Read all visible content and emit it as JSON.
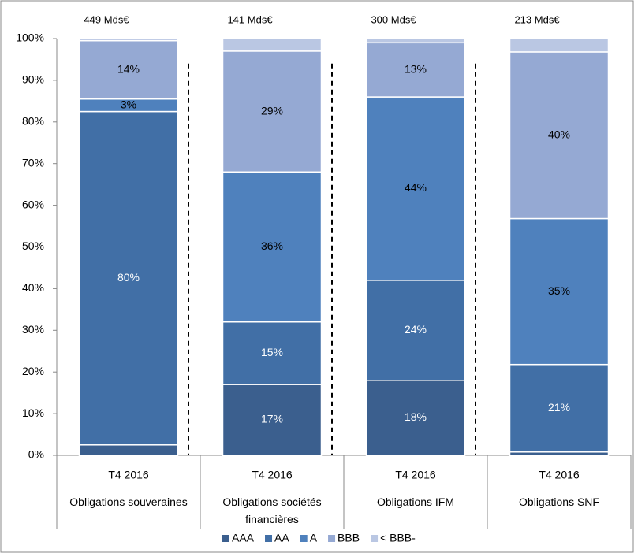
{
  "chart_data": {
    "type": "stacked_bar",
    "categories": [
      "T4 2016",
      "T4 2016",
      "T4 2016",
      "T4 2016"
    ],
    "groups": [
      "Obligations souveraines",
      "Obligations sociétés financières",
      "Obligations IFM",
      "Obligations SNF"
    ],
    "totals": [
      "449 Mds€",
      "141 Mds€",
      "300 Mds€",
      "213 Mds€"
    ],
    "series": [
      {
        "name": "AAA",
        "color": "#3b5f8e",
        "values": [
          2.5,
          17,
          18,
          0.8
        ],
        "value_labels": [
          null,
          "17%",
          "18%",
          null
        ]
      },
      {
        "name": "AA",
        "color": "#416fa6",
        "values": [
          80,
          15,
          24,
          21
        ],
        "value_labels": [
          "80%",
          "15%",
          "24%",
          "21%"
        ]
      },
      {
        "name": "A",
        "color": "#4f81bd",
        "values": [
          3,
          36,
          44,
          35
        ],
        "value_labels": [
          "3%",
          "36%",
          "44%",
          "35%"
        ]
      },
      {
        "name": "BBB",
        "color": "#95a9d3",
        "values": [
          14,
          29,
          13,
          40
        ],
        "value_labels": [
          "14%",
          "29%",
          "13%",
          "40%"
        ]
      },
      {
        "name": "< BBB-",
        "color": "#bac7e3",
        "values": [
          0.5,
          3,
          1,
          3.2
        ],
        "value_labels": [
          null,
          null,
          null,
          null
        ]
      }
    ],
    "ylim": [
      0,
      100
    ],
    "yticks": [
      {
        "value": 0,
        "label": "0%"
      },
      {
        "value": 10,
        "label": "10%"
      },
      {
        "value": 20,
        "label": "20%"
      },
      {
        "value": 30,
        "label": "30%"
      },
      {
        "value": 40,
        "label": "40%"
      },
      {
        "value": 50,
        "label": "50%"
      },
      {
        "value": 60,
        "label": "60%"
      },
      {
        "value": 70,
        "label": "70%"
      },
      {
        "value": 80,
        "label": "80%"
      },
      {
        "value": 90,
        "label": "90%"
      },
      {
        "value": 100,
        "label": "100%"
      }
    ],
    "legend": "bottom"
  }
}
